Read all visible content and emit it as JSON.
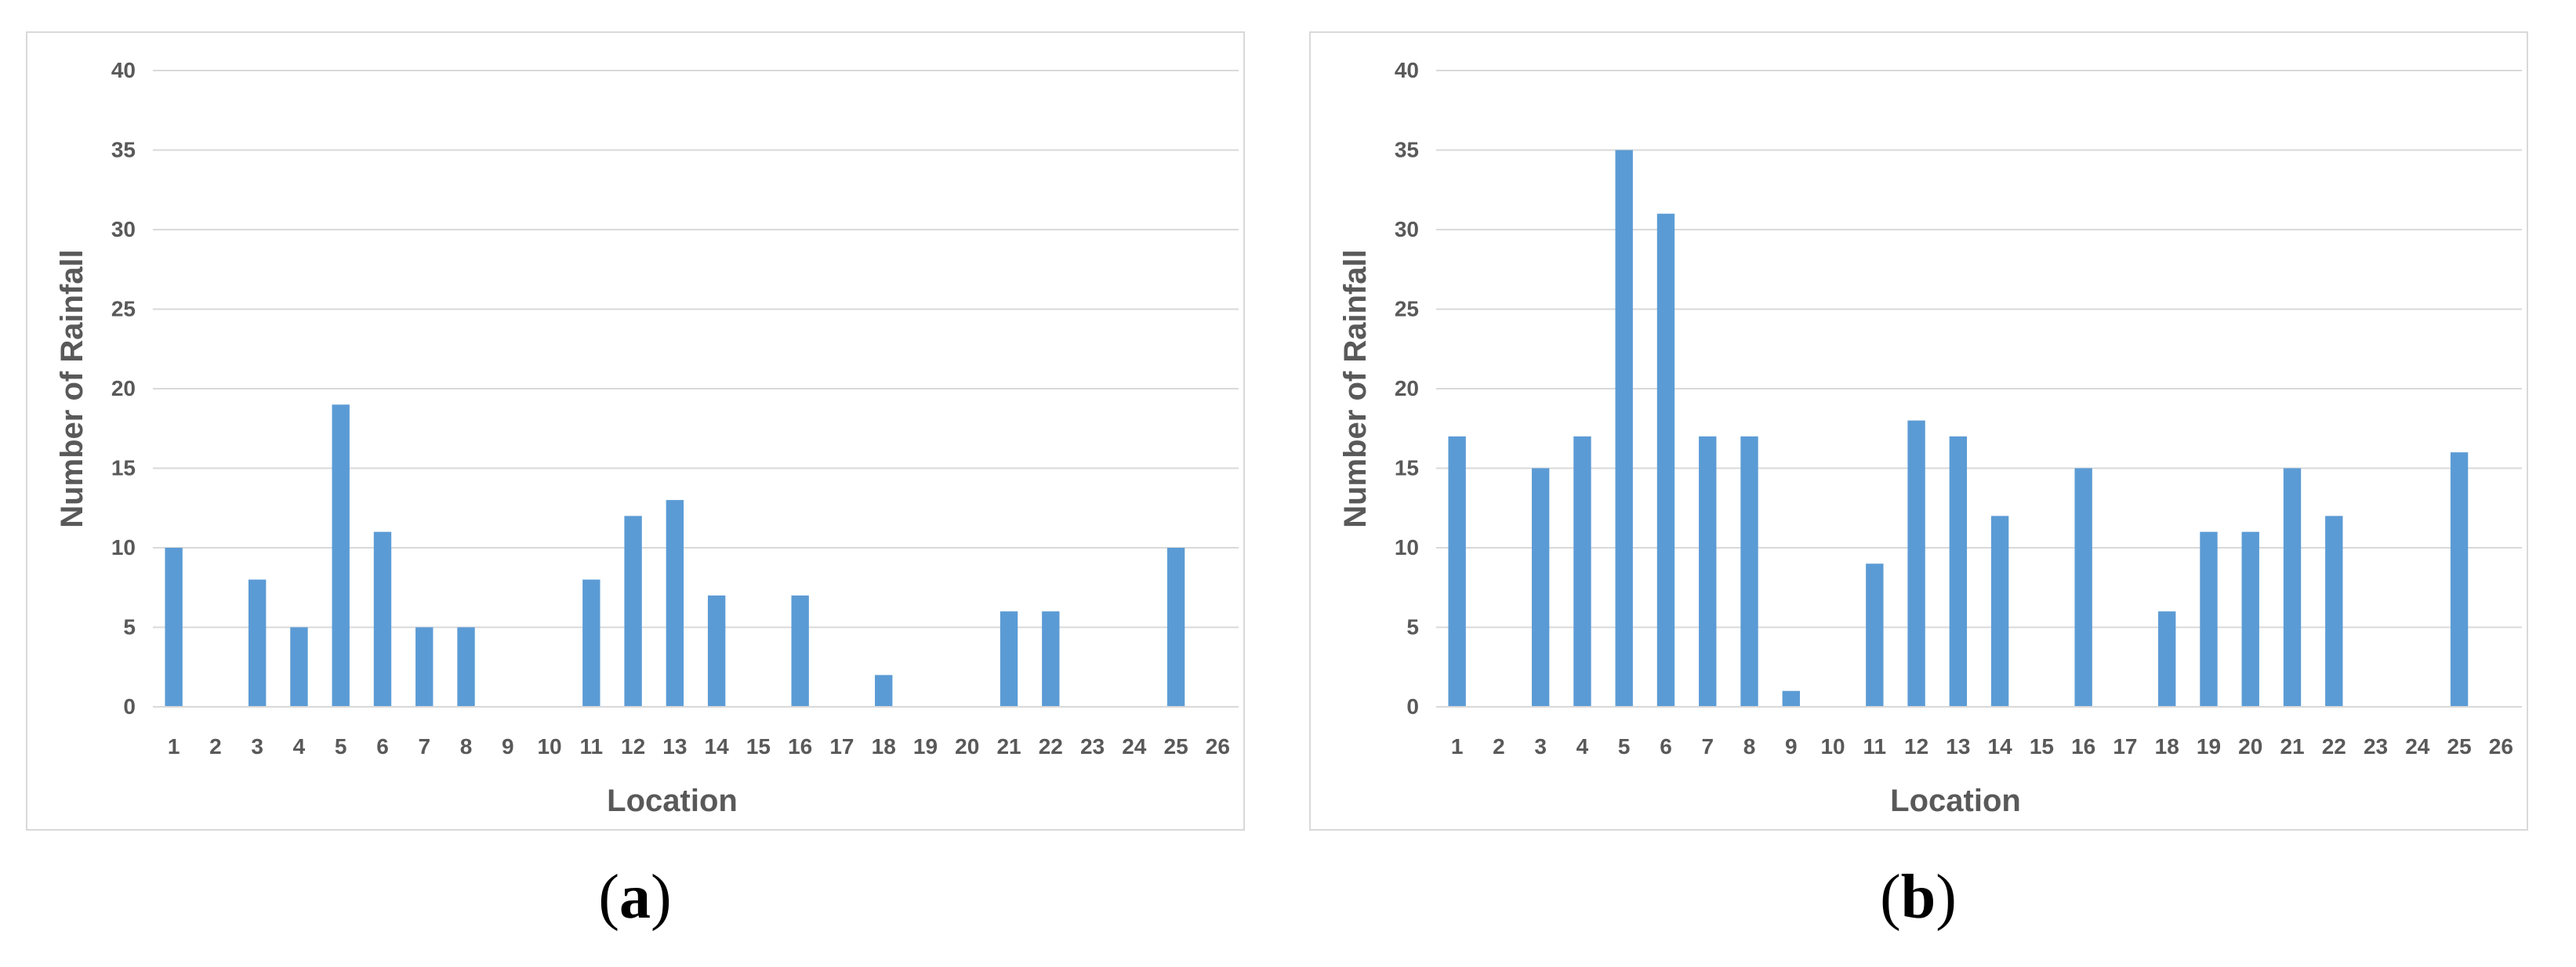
{
  "colors": {
    "bar": "#5b9bd5",
    "grid": "#d9d9d9",
    "text": "#595959",
    "axis": "#d9d9d9"
  },
  "captions": [
    {
      "open": "(",
      "letter": "a",
      "close": ")"
    },
    {
      "open": "(",
      "letter": "b",
      "close": ")"
    }
  ],
  "chart_data": [
    {
      "type": "bar",
      "panel": "a",
      "xlabel": "Location",
      "ylabel": "Number of Rainfall",
      "ylim": [
        0,
        40
      ],
      "yticks": [
        0,
        5,
        10,
        15,
        20,
        25,
        30,
        35,
        40
      ],
      "grid": true,
      "categories": [
        "1",
        "2",
        "3",
        "4",
        "5",
        "6",
        "7",
        "8",
        "9",
        "10",
        "11",
        "12",
        "13",
        "14",
        "15",
        "16",
        "17",
        "18",
        "19",
        "20",
        "21",
        "22",
        "23",
        "24",
        "25",
        "26"
      ],
      "values": [
        10,
        0,
        8,
        5,
        19,
        11,
        5,
        5,
        0,
        0,
        8,
        12,
        13,
        7,
        0,
        7,
        0,
        2,
        0,
        0,
        6,
        6,
        0,
        0,
        10,
        0
      ]
    },
    {
      "type": "bar",
      "panel": "b",
      "xlabel": "Location",
      "ylabel": "Number of Rainfall",
      "ylim": [
        0,
        40
      ],
      "yticks": [
        0,
        5,
        10,
        15,
        20,
        25,
        30,
        35,
        40
      ],
      "grid": true,
      "categories": [
        "1",
        "2",
        "3",
        "4",
        "5",
        "6",
        "7",
        "8",
        "9",
        "10",
        "11",
        "12",
        "13",
        "14",
        "15",
        "16",
        "17",
        "18",
        "19",
        "20",
        "21",
        "22",
        "23",
        "24",
        "25",
        "26"
      ],
      "values": [
        17,
        0,
        15,
        17,
        35,
        31,
        17,
        17,
        1,
        0,
        9,
        18,
        17,
        12,
        0,
        15,
        0,
        6,
        11,
        11,
        15,
        12,
        0,
        0,
        16,
        0
      ]
    }
  ]
}
